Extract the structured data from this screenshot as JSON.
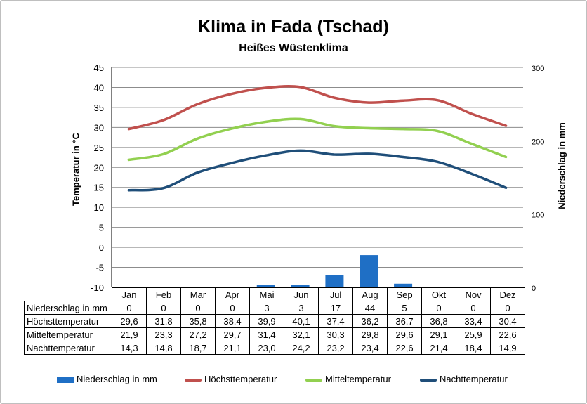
{
  "title": "Klima in Fada (Tschad)",
  "subtitle": "Heißes Wüstenklima",
  "chart_data": {
    "type": "line",
    "title": "Klima in Fada (Tschad)",
    "subtitle": "Heißes Wüstenklima",
    "categories": [
      "Jan",
      "Feb",
      "Mar",
      "Apr",
      "Mai",
      "Jun",
      "Jul",
      "Aug",
      "Sep",
      "Okt",
      "Nov",
      "Dez"
    ],
    "ylabel": "Temperatur in °C",
    "y2label": "Niederschlag in mm",
    "ylim": [
      -10,
      45
    ],
    "y2lim": [
      0,
      300
    ],
    "y_ticks": [
      "45",
      "40",
      "35",
      "30",
      "25",
      "20",
      "15",
      "10",
      "5",
      "0",
      "-5",
      "-10"
    ],
    "y2_ticks": [
      "300",
      "200",
      "100",
      "0"
    ],
    "grid": true,
    "legend_position": "bottom",
    "series": [
      {
        "name": "Niederschlag in mm",
        "type": "bar",
        "axis": "right",
        "color": "#1f6fc5",
        "values": [
          0,
          0,
          0,
          0,
          3,
          3,
          17,
          44,
          5,
          0,
          0,
          0
        ],
        "labels": [
          "0",
          "0",
          "0",
          "0",
          "3",
          "3",
          "17",
          "44",
          "5",
          "0",
          "0",
          "0"
        ]
      },
      {
        "name": "Höchsttemperatur",
        "type": "line",
        "axis": "left",
        "color": "#c0504d",
        "values": [
          29.6,
          31.8,
          35.8,
          38.4,
          39.9,
          40.1,
          37.4,
          36.2,
          36.7,
          36.8,
          33.4,
          30.4
        ],
        "labels": [
          "29,6",
          "31,8",
          "35,8",
          "38,4",
          "39,9",
          "40,1",
          "37,4",
          "36,2",
          "36,7",
          "36,8",
          "33,4",
          "30,4"
        ]
      },
      {
        "name": "Mitteltemperatur",
        "type": "line",
        "axis": "left",
        "color": "#92d050",
        "values": [
          21.9,
          23.3,
          27.2,
          29.7,
          31.4,
          32.1,
          30.3,
          29.8,
          29.6,
          29.1,
          25.9,
          22.6
        ],
        "labels": [
          "21,9",
          "23,3",
          "27,2",
          "29,7",
          "31,4",
          "32,1",
          "30,3",
          "29,8",
          "29,6",
          "29,1",
          "25,9",
          "22,6"
        ]
      },
      {
        "name": "Nachttemperatur",
        "type": "line",
        "axis": "left",
        "color": "#1f4e79",
        "values": [
          14.3,
          14.8,
          18.7,
          21.1,
          23.0,
          24.2,
          23.2,
          23.4,
          22.6,
          21.4,
          18.4,
          14.9
        ],
        "labels": [
          "14,3",
          "14,8",
          "18,7",
          "21,1",
          "23,0",
          "24,2",
          "23,2",
          "23,4",
          "22,6",
          "21,4",
          "18,4",
          "14,9"
        ]
      }
    ]
  }
}
